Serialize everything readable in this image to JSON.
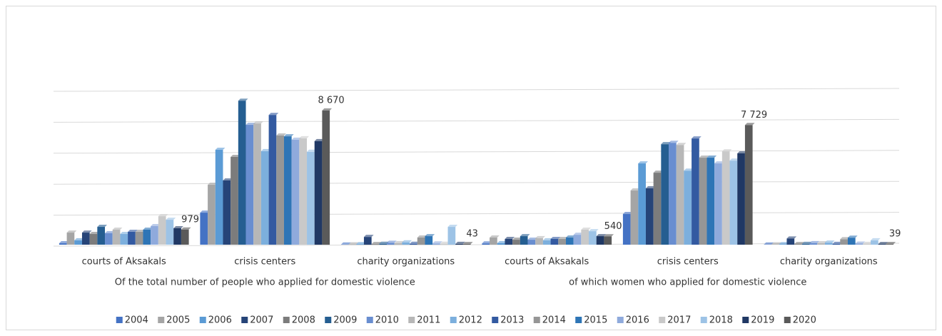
{
  "chart_data": {
    "type": "bar",
    "categories": [
      "courts of Aksakals",
      "crisis centers",
      "charity organizations",
      "courts of Aksakals",
      "crisis centers",
      "charity organizations"
    ],
    "groups": [
      "Of the total number of people who applied for domestic violence",
      "of which women who applied for domestic violence"
    ],
    "ylim": [
      0,
      10000
    ],
    "yticks": [
      0,
      2000,
      4000,
      6000,
      8000,
      10000
    ],
    "grid": true,
    "legend": "bottom",
    "series": [
      {
        "name": "2004",
        "color": "#4472c4",
        "values": [
          90,
          2070,
          10,
          80,
          1980,
          10
        ]
      },
      {
        "name": "2005",
        "color": "#a5a5a5",
        "values": [
          780,
          3870,
          20,
          460,
          3500,
          20
        ]
      },
      {
        "name": "2006",
        "color": "#5b9bd5",
        "values": [
          280,
          6130,
          30,
          100,
          5250,
          30
        ]
      },
      {
        "name": "2007",
        "color": "#264478",
        "values": [
          780,
          4150,
          500,
          370,
          3640,
          400
        ]
      },
      {
        "name": "2008",
        "color": "#7c7c7c",
        "values": [
          690,
          5670,
          40,
          320,
          4650,
          40
        ]
      },
      {
        "name": "2009",
        "color": "#255e91",
        "values": [
          1150,
          9300,
          60,
          550,
          6490,
          50
        ]
      },
      {
        "name": "2010",
        "color": "#698ed0",
        "values": [
          740,
          7740,
          120,
          320,
          6580,
          100
        ]
      },
      {
        "name": "2011",
        "color": "#b7b7b7",
        "values": [
          970,
          7830,
          100,
          420,
          6440,
          90
        ]
      },
      {
        "name": "2012",
        "color": "#7cafdd",
        "values": [
          690,
          6040,
          150,
          280,
          4780,
          130
        ]
      },
      {
        "name": "2013",
        "color": "#335aa1",
        "values": [
          830,
          8380,
          60,
          370,
          6860,
          50
        ]
      },
      {
        "name": "2014",
        "color": "#969696",
        "values": [
          830,
          7050,
          460,
          370,
          5620,
          350
        ]
      },
      {
        "name": "2015",
        "color": "#2e75b6",
        "values": [
          970,
          7000,
          550,
          460,
          5620,
          450
        ]
      },
      {
        "name": "2016",
        "color": "#8faadc",
        "values": [
          1200,
          6780,
          80,
          640,
          5250,
          70
        ]
      },
      {
        "name": "2017",
        "color": "#c9c9c9",
        "values": [
          1840,
          6870,
          60,
          970,
          6030,
          50
        ]
      },
      {
        "name": "2018",
        "color": "#9dc3e6",
        "values": [
          1610,
          6000,
          1150,
          870,
          5430,
          280
        ]
      },
      {
        "name": "2019",
        "color": "#203864",
        "values": [
          1060,
          6690,
          50,
          550,
          5900,
          40
        ]
      },
      {
        "name": "2020",
        "color": "#5a5a5a",
        "values": [
          979,
          8670,
          43,
          540,
          7729,
          39
        ],
        "value_labels": [
          "979",
          "8 670",
          "43",
          "540",
          "7 729",
          "39"
        ]
      }
    ]
  }
}
